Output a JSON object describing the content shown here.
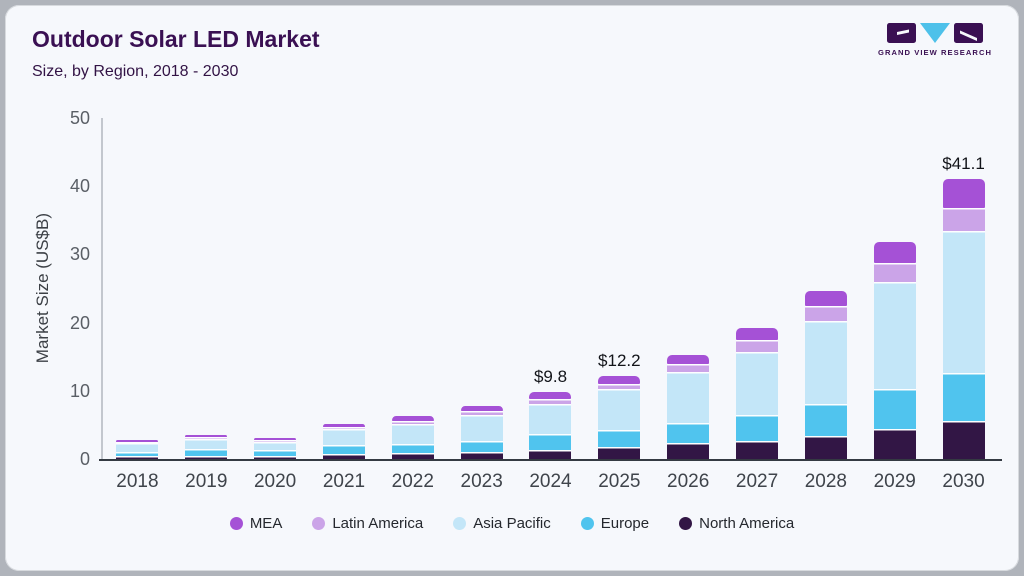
{
  "header": {
    "title": "Outdoor Solar LED Market",
    "subtitle": "Size, by Region, 2018 - 2030",
    "logo_text": "GRAND VIEW RESEARCH"
  },
  "chart_data": {
    "type": "bar",
    "stacked": true,
    "title": "Outdoor Solar LED Market, Size, by Region, 2018 - 2030",
    "ylabel": "Market Size (US$B)",
    "ylim": [
      0,
      50
    ],
    "yticks": [
      0,
      10,
      20,
      30,
      40,
      50
    ],
    "grid": false,
    "legend_position": "bottom",
    "categories": [
      "2018",
      "2019",
      "2020",
      "2021",
      "2022",
      "2023",
      "2024",
      "2025",
      "2026",
      "2027",
      "2028",
      "2029",
      "2030"
    ],
    "series": [
      {
        "name": "North America",
        "color": "#321645",
        "values": [
          0.45,
          0.5,
          0.5,
          0.8,
          0.9,
          1.0,
          1.3,
          1.7,
          2.3,
          2.6,
          3.4,
          4.4,
          5.6
        ]
      },
      {
        "name": "Europe",
        "color": "#50c4ee",
        "values": [
          0.65,
          0.9,
          0.75,
          1.2,
          1.3,
          1.7,
          2.3,
          2.5,
          3.0,
          3.8,
          4.6,
          5.9,
          7.0
        ]
      },
      {
        "name": "Asia Pacific",
        "color": "#c3e6f8",
        "values": [
          1.2,
          1.6,
          1.3,
          2.4,
          2.9,
          3.7,
          4.4,
          6.0,
          7.4,
          9.3,
          12.2,
          15.7,
          20.9
        ]
      },
      {
        "name": "Latin America",
        "color": "#cba4e8",
        "values": [
          0.2,
          0.3,
          0.3,
          0.3,
          0.55,
          0.6,
          0.8,
          0.8,
          1.2,
          1.7,
          2.2,
          2.7,
          3.3
        ]
      },
      {
        "name": "MEA",
        "color": "#a551d6",
        "values": [
          0.15,
          0.25,
          0.25,
          0.5,
          0.65,
          0.8,
          1.0,
          1.2,
          1.4,
          1.8,
          2.3,
          3.1,
          4.3
        ]
      }
    ],
    "bar_value_labels": [
      "",
      "",
      "",
      "",
      "",
      "",
      "$9.8",
      "$12.2",
      "",
      "",
      "",
      "",
      "$41.1"
    ],
    "totals": [
      2.65,
      3.55,
      3.1,
      5.2,
      6.3,
      7.8,
      9.8,
      12.2,
      15.3,
      19.2,
      24.7,
      31.8,
      41.1
    ],
    "legend": [
      "MEA",
      "Latin America",
      "Asia Pacific",
      "Europe",
      "North America"
    ]
  },
  "brand_colors": {
    "logo_dark": "#3a1053",
    "logo_blue": "#4ec1ea"
  }
}
